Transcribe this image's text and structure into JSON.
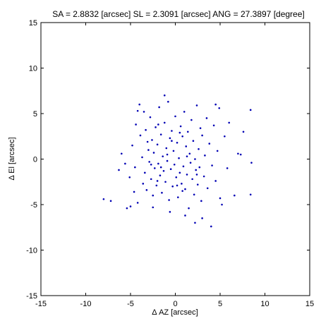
{
  "chart_data": {
    "type": "scatter",
    "title": "SA = 2.8832 [arcsec]  SL = 2.3091 [arcsec]  ANG = 27.3897 [degree]",
    "xlabel": "Δ AZ [arcsec]",
    "ylabel": "Δ El [arcsec]",
    "xlim": [
      -15,
      15
    ],
    "ylim": [
      -15,
      15
    ],
    "xticks": [
      -15,
      -10,
      -5,
      0,
      5,
      10,
      15
    ],
    "yticks": [
      -15,
      -10,
      -5,
      0,
      5,
      10,
      15
    ],
    "x_tick_labels": [
      "-15",
      "-10",
      "-5",
      "0",
      "5",
      "10",
      "15"
    ],
    "y_tick_labels": [
      "-15",
      "-10",
      "-5",
      "0",
      "5",
      "10",
      "15"
    ],
    "grid": false,
    "legend": "none",
    "marker_color": "#0000b4",
    "series": [
      {
        "points": [
          [
            -8.0,
            -4.4
          ],
          [
            -7.2,
            -4.6
          ],
          [
            -6.3,
            -1.2
          ],
          [
            -6.0,
            0.6
          ],
          [
            -5.6,
            -0.5
          ],
          [
            -5.4,
            -5.4
          ],
          [
            -5.1,
            -2.0
          ],
          [
            -5.0,
            -5.2
          ],
          [
            -4.8,
            1.5
          ],
          [
            -4.6,
            -3.6
          ],
          [
            -4.5,
            -0.9
          ],
          [
            -4.4,
            3.8
          ],
          [
            -4.2,
            -4.8
          ],
          [
            -4.0,
            6.0
          ],
          [
            -3.9,
            2.6
          ],
          [
            -3.7,
            0.2
          ],
          [
            -3.6,
            -2.7
          ],
          [
            -3.5,
            5.2
          ],
          [
            -3.4,
            -1.5
          ],
          [
            -3.3,
            3.2
          ],
          [
            -3.2,
            -3.4
          ],
          [
            -3.0,
            1.0
          ],
          [
            -2.9,
            -0.3
          ],
          [
            -2.8,
            4.6
          ],
          [
            -2.7,
            -2.2
          ],
          [
            -2.6,
            2.1
          ],
          [
            -2.5,
            -4.0
          ],
          [
            -2.4,
            0.7
          ],
          [
            -2.3,
            -1.0
          ],
          [
            -2.2,
            3.5
          ],
          [
            -2.1,
            -2.9
          ],
          [
            -2.0,
            1.6
          ],
          [
            -1.9,
            -0.5
          ],
          [
            -1.8,
            5.7
          ],
          [
            -1.7,
            -1.8
          ],
          [
            -1.6,
            2.7
          ],
          [
            -1.5,
            -3.7
          ],
          [
            -1.4,
            0.3
          ],
          [
            -1.3,
            -1.3
          ],
          [
            -1.2,
            4.0
          ],
          [
            -1.1,
            -2.5
          ],
          [
            -1.0,
            1.2
          ],
          [
            -0.9,
            -0.2
          ],
          [
            -0.8,
            6.3
          ],
          [
            -0.7,
            -4.5
          ],
          [
            -0.6,
            2.3
          ],
          [
            -0.5,
            -1.1
          ],
          [
            -0.4,
            3.1
          ],
          [
            -0.3,
            -3.0
          ],
          [
            -0.2,
            0.9
          ],
          [
            -0.1,
            -0.6
          ],
          [
            0.0,
            4.7
          ],
          [
            0.1,
            -2.0
          ],
          [
            0.2,
            1.8
          ],
          [
            0.3,
            -4.2
          ],
          [
            0.4,
            0.1
          ],
          [
            0.5,
            -1.5
          ],
          [
            0.6,
            3.6
          ],
          [
            0.7,
            -2.7
          ],
          [
            0.8,
            2.5
          ],
          [
            0.9,
            -0.8
          ],
          [
            1.0,
            5.2
          ],
          [
            1.1,
            -3.3
          ],
          [
            1.2,
            1.4
          ],
          [
            1.3,
            -1.7
          ],
          [
            1.4,
            3.0
          ],
          [
            1.5,
            -5.4
          ],
          [
            1.6,
            0.6
          ],
          [
            1.7,
            -0.4
          ],
          [
            1.8,
            4.3
          ],
          [
            1.9,
            -2.2
          ],
          [
            2.0,
            2.0
          ],
          [
            2.1,
            -3.9
          ],
          [
            2.2,
            0.0
          ],
          [
            2.3,
            -1.2
          ],
          [
            2.4,
            5.9
          ],
          [
            2.5,
            -2.8
          ],
          [
            2.6,
            1.1
          ],
          [
            2.7,
            -0.9
          ],
          [
            2.8,
            3.4
          ],
          [
            2.9,
            -4.6
          ],
          [
            3.0,
            2.6
          ],
          [
            3.2,
            -1.9
          ],
          [
            3.3,
            0.4
          ],
          [
            3.5,
            4.5
          ],
          [
            3.6,
            -3.2
          ],
          [
            3.8,
            1.7
          ],
          [
            4.0,
            -7.4
          ],
          [
            4.1,
            -0.7
          ],
          [
            4.3,
            3.7
          ],
          [
            4.5,
            -2.4
          ],
          [
            4.7,
            0.9
          ],
          [
            4.9,
            5.6
          ],
          [
            5.0,
            -4.3
          ],
          [
            5.2,
            -5.0
          ],
          [
            5.5,
            2.5
          ],
          [
            5.8,
            -1.0
          ],
          [
            6.0,
            4.0
          ],
          [
            6.6,
            -4.0
          ],
          [
            7.0,
            0.6
          ],
          [
            7.3,
            0.5
          ],
          [
            7.6,
            3.0
          ],
          [
            8.4,
            5.4
          ],
          [
            8.5,
            -0.4
          ],
          [
            8.4,
            -3.9
          ],
          [
            -1.2,
            7.0
          ],
          [
            -4.2,
            5.3
          ],
          [
            4.5,
            6.0
          ],
          [
            3.0,
            -6.5
          ],
          [
            2.2,
            -7.0
          ],
          [
            -0.6,
            -5.8
          ],
          [
            -2.5,
            -5.3
          ],
          [
            1.1,
            -6.2
          ],
          [
            -1.6,
            -0.9
          ],
          [
            -0.9,
            0.5
          ],
          [
            0.2,
            -2.9
          ],
          [
            -0.4,
            2.0
          ],
          [
            1.3,
            0.3
          ],
          [
            -2.0,
            -2.4
          ],
          [
            -3.1,
            1.9
          ],
          [
            0.8,
            -3.5
          ],
          [
            -1.9,
            3.8
          ],
          [
            2.4,
            -1.7
          ],
          [
            -2.7,
            -0.6
          ],
          [
            0.5,
            2.9
          ]
        ]
      }
    ]
  }
}
